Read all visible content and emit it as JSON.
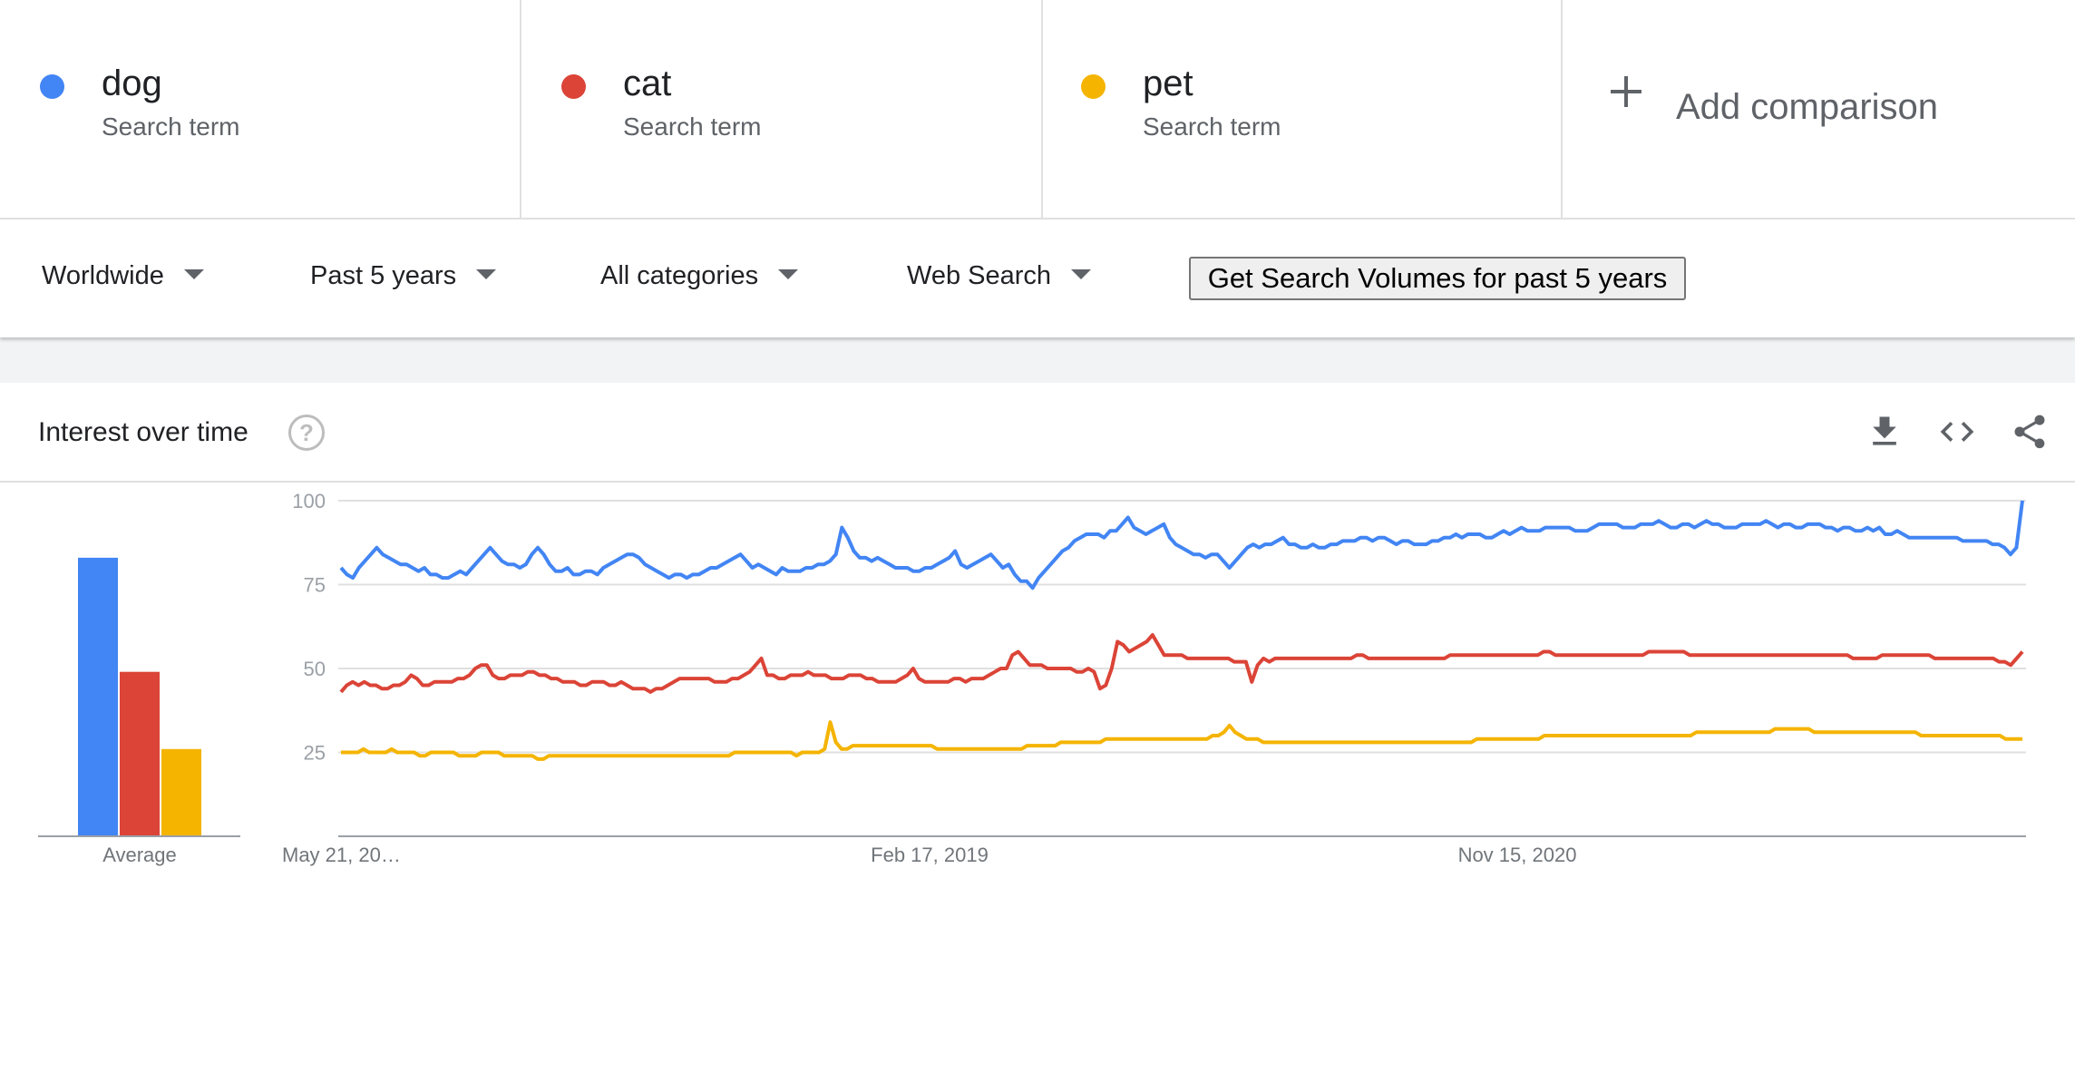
{
  "terms": [
    {
      "name": "dog",
      "sub": "Search term",
      "color": "#4285f4"
    },
    {
      "name": "cat",
      "sub": "Search term",
      "color": "#db4437"
    },
    {
      "name": "pet",
      "sub": "Search term",
      "color": "#f4b400"
    }
  ],
  "add_comparison": "Add comparison",
  "filters": {
    "region": "Worldwide",
    "time": "Past 5 years",
    "category": "All categories",
    "search_type": "Web Search",
    "volume_button": "Get Search Volumes for past 5 years"
  },
  "card": {
    "title": "Interest over time",
    "help_icon": "help-circle-icon",
    "tools": [
      "download-icon",
      "embed-code-icon",
      "share-icon"
    ]
  },
  "chart_data": {
    "type": "line",
    "y_ticks": [
      100,
      75,
      50,
      25
    ],
    "ylim": [
      0,
      100
    ],
    "x_tick_labels": [
      "May 21, 20…",
      "Feb 17, 2019",
      "Nov 15, 2020"
    ],
    "average_label": "Average",
    "averages": [
      {
        "term": "dog",
        "value": 83,
        "color": "#4285f4"
      },
      {
        "term": "cat",
        "value": 49,
        "color": "#db4437"
      },
      {
        "term": "pet",
        "value": 26,
        "color": "#f4b400"
      }
    ],
    "series": [
      {
        "name": "dog",
        "color": "#4285f4",
        "values": [
          80,
          78,
          77,
          80,
          82,
          84,
          86,
          84,
          83,
          82,
          81,
          81,
          80,
          79,
          80,
          78,
          78,
          77,
          77,
          78,
          79,
          78,
          80,
          82,
          84,
          86,
          84,
          82,
          81,
          81,
          80,
          81,
          84,
          86,
          84,
          81,
          79,
          79,
          80,
          78,
          78,
          79,
          79,
          78,
          80,
          81,
          82,
          83,
          84,
          84,
          83,
          81,
          80,
          79,
          78,
          77,
          78,
          78,
          77,
          78,
          78,
          79,
          80,
          80,
          81,
          82,
          83,
          84,
          82,
          80,
          81,
          80,
          79,
          78,
          80,
          79,
          79,
          79,
          80,
          80,
          81,
          81,
          82,
          84,
          92,
          89,
          85,
          83,
          83,
          82,
          83,
          82,
          81,
          80,
          80,
          80,
          79,
          79,
          80,
          80,
          81,
          82,
          83,
          85,
          81,
          80,
          81,
          82,
          83,
          84,
          82,
          80,
          81,
          78,
          76,
          76,
          74,
          77,
          79,
          81,
          83,
          85,
          86,
          88,
          89,
          90,
          90,
          90,
          89,
          91,
          91,
          93,
          95,
          92,
          91,
          90,
          91,
          92,
          93,
          89,
          87,
          86,
          85,
          84,
          84,
          83,
          84,
          84,
          82,
          80,
          82,
          84,
          86,
          87,
          86,
          87,
          87,
          88,
          89,
          87,
          87,
          86,
          86,
          87,
          86,
          86,
          87,
          87,
          88,
          88,
          88,
          89,
          89,
          88,
          89,
          89,
          88,
          87,
          88,
          88,
          87,
          87,
          87,
          88,
          88,
          89,
          89,
          90,
          89,
          90,
          90,
          90,
          89,
          89,
          90,
          91,
          90,
          91,
          92,
          91,
          91,
          91,
          92,
          92,
          92,
          92,
          92,
          91,
          91,
          91,
          92,
          93,
          93,
          93,
          93,
          92,
          92,
          92,
          93,
          93,
          93,
          94,
          93,
          92,
          92,
          93,
          93,
          92,
          93,
          94,
          93,
          93,
          92,
          92,
          92,
          93,
          93,
          93,
          93,
          94,
          93,
          92,
          93,
          93,
          92,
          92,
          93,
          93,
          93,
          92,
          92,
          91,
          92,
          92,
          91,
          91,
          92,
          91,
          92,
          90,
          90,
          91,
          90,
          89,
          89,
          89,
          89,
          89,
          89,
          89,
          89,
          89,
          88,
          88,
          88,
          88,
          88,
          87,
          87,
          86,
          84,
          86,
          100
        ]
      },
      {
        "name": "cat",
        "color": "#db4437",
        "values": [
          43,
          45,
          46,
          45,
          46,
          45,
          45,
          44,
          44,
          45,
          45,
          46,
          48,
          47,
          45,
          45,
          46,
          46,
          46,
          46,
          47,
          47,
          48,
          50,
          51,
          51,
          48,
          47,
          47,
          48,
          48,
          48,
          49,
          49,
          48,
          48,
          47,
          47,
          46,
          46,
          46,
          45,
          45,
          46,
          46,
          46,
          45,
          45,
          46,
          45,
          44,
          44,
          44,
          43,
          44,
          44,
          45,
          46,
          47,
          47,
          47,
          47,
          47,
          47,
          46,
          46,
          46,
          47,
          47,
          48,
          49,
          51,
          53,
          48,
          48,
          47,
          47,
          48,
          48,
          48,
          49,
          48,
          48,
          48,
          47,
          47,
          47,
          48,
          48,
          48,
          47,
          47,
          46,
          46,
          46,
          46,
          47,
          48,
          50,
          47,
          46,
          46,
          46,
          46,
          46,
          47,
          47,
          46,
          47,
          47,
          47,
          48,
          49,
          50,
          50,
          54,
          55,
          53,
          51,
          51,
          51,
          50,
          50,
          50,
          50,
          50,
          49,
          49,
          50,
          49,
          44,
          45,
          50,
          58,
          57,
          55,
          56,
          57,
          58,
          60,
          57,
          54,
          54,
          54,
          54,
          53,
          53,
          53,
          53,
          53,
          53,
          53,
          53,
          52,
          52,
          52,
          46,
          51,
          53,
          52,
          53,
          53,
          53,
          53,
          53,
          53,
          53,
          53,
          53,
          53,
          53,
          53,
          53,
          53,
          54,
          54,
          53,
          53,
          53,
          53,
          53,
          53,
          53,
          53,
          53,
          53,
          53,
          53,
          53,
          53,
          54,
          54,
          54,
          54,
          54,
          54,
          54,
          54,
          54,
          54,
          54,
          54,
          54,
          54,
          54,
          54,
          55,
          55,
          54,
          54,
          54,
          54,
          54,
          54,
          54,
          54,
          54,
          54,
          54,
          54,
          54,
          54,
          54,
          54,
          55,
          55,
          55,
          55,
          55,
          55,
          55,
          54,
          54,
          54,
          54,
          54,
          54,
          54,
          54,
          54,
          54,
          54,
          54,
          54,
          54,
          54,
          54,
          54,
          54,
          54,
          54,
          54,
          54,
          54,
          54,
          54,
          54,
          54,
          54,
          53,
          53,
          53,
          53,
          53,
          54,
          54,
          54,
          54,
          54,
          54,
          54,
          54,
          54,
          53,
          53,
          53,
          53,
          53,
          53,
          53,
          53,
          53,
          53,
          53,
          52,
          52,
          51,
          53,
          55
        ]
      },
      {
        "name": "pet",
        "color": "#f4b400",
        "values": [
          25,
          25,
          25,
          25,
          26,
          25,
          25,
          25,
          25,
          26,
          25,
          25,
          25,
          25,
          24,
          24,
          25,
          25,
          25,
          25,
          25,
          24,
          24,
          24,
          24,
          25,
          25,
          25,
          25,
          24,
          24,
          24,
          24,
          24,
          24,
          23,
          23,
          24,
          24,
          24,
          24,
          24,
          24,
          24,
          24,
          24,
          24,
          24,
          24,
          24,
          24,
          24,
          24,
          24,
          24,
          24,
          24,
          24,
          24,
          24,
          24,
          24,
          24,
          24,
          24,
          24,
          24,
          24,
          24,
          24,
          25,
          25,
          25,
          25,
          25,
          25,
          25,
          25,
          25,
          25,
          25,
          24,
          25,
          25,
          25,
          25,
          26,
          34,
          28,
          26,
          26,
          27,
          27,
          27,
          27,
          27,
          27,
          27,
          27,
          27,
          27,
          27,
          27,
          27,
          27,
          27,
          26,
          26,
          26,
          26,
          26,
          26,
          26,
          26,
          26,
          26,
          26,
          26,
          26,
          26,
          26,
          26,
          27,
          27,
          27,
          27,
          27,
          27,
          28,
          28,
          28,
          28,
          28,
          28,
          28,
          28,
          29,
          29,
          29,
          29,
          29,
          29,
          29,
          29,
          29,
          29,
          29,
          29,
          29,
          29,
          29,
          29,
          29,
          29,
          29,
          30,
          30,
          31,
          33,
          31,
          30,
          29,
          29,
          29,
          28,
          28,
          28,
          28,
          28,
          28,
          28,
          28,
          28,
          28,
          28,
          28,
          28,
          28,
          28,
          28,
          28,
          28,
          28,
          28,
          28,
          28,
          28,
          28,
          28,
          28,
          28,
          28,
          28,
          28,
          28,
          28,
          28,
          28,
          28,
          28,
          28,
          28,
          29,
          29,
          29,
          29,
          29,
          29,
          29,
          29,
          29,
          29,
          29,
          29,
          30,
          30,
          30,
          30,
          30,
          30,
          30,
          30,
          30,
          30,
          30,
          30,
          30,
          30,
          30,
          30,
          30,
          30,
          30,
          30,
          30,
          30,
          30,
          30,
          30,
          30,
          30,
          31,
          31,
          31,
          31,
          31,
          31,
          31,
          31,
          31,
          31,
          31,
          31,
          31,
          31,
          32,
          32,
          32,
          32,
          32,
          32,
          32,
          31,
          31,
          31,
          31,
          31,
          31,
          31,
          31,
          31,
          31,
          31,
          31,
          31,
          31,
          31,
          31,
          31,
          31,
          31,
          30,
          30,
          30,
          30,
          30,
          30,
          30,
          30,
          30,
          30,
          30,
          30,
          30,
          30,
          30,
          29,
          29,
          29,
          29
        ]
      }
    ]
  }
}
